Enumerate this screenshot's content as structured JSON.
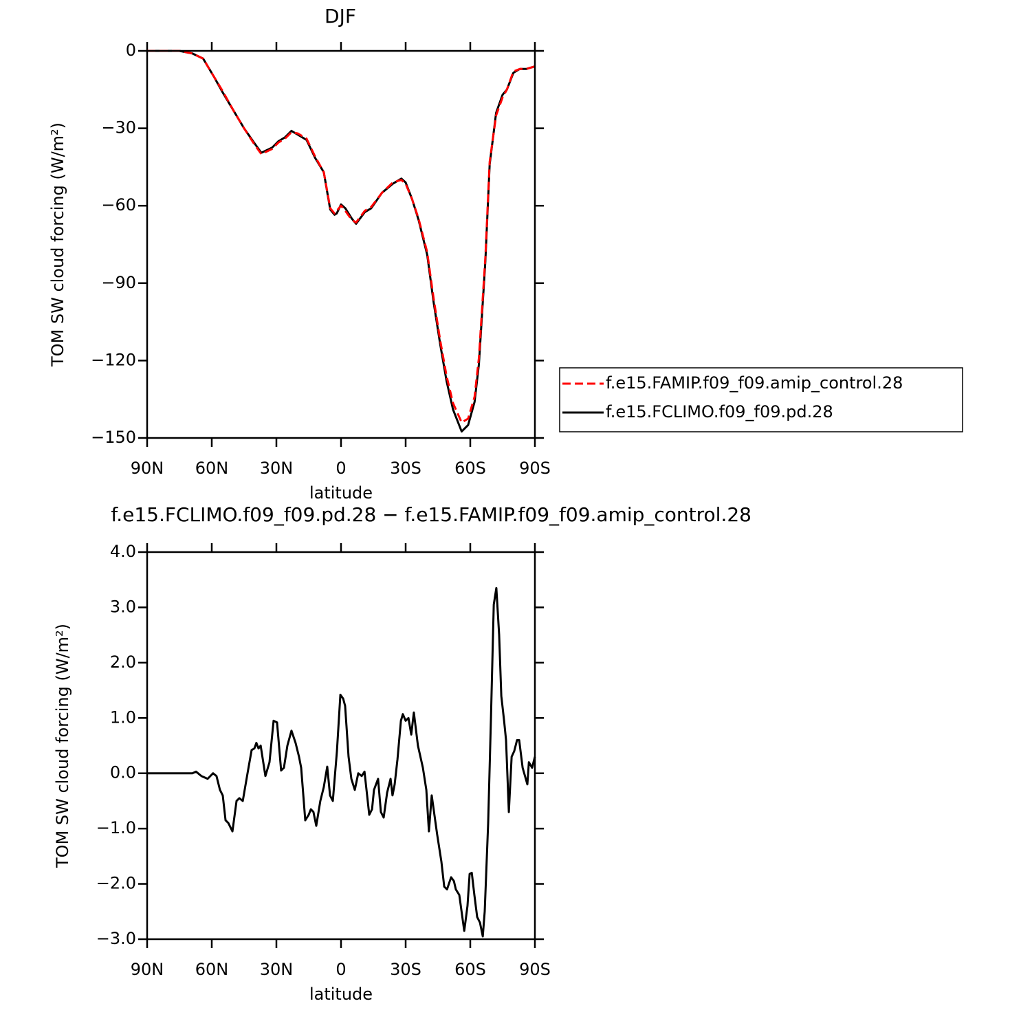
{
  "chart_data": [
    {
      "type": "line",
      "title": "DJF",
      "xlabel": "latitude",
      "ylabel": "TOM SW cloud forcing (W/m²)",
      "x": [
        90,
        80,
        75,
        69,
        64,
        59,
        55,
        50,
        45,
        40,
        37,
        32,
        29,
        26,
        23,
        20,
        16,
        12,
        8,
        5,
        3,
        2,
        0,
        -2,
        -5,
        -7,
        -11,
        -14,
        -19,
        -24,
        -28,
        -30,
        -33,
        -36,
        -40,
        -43,
        -46,
        -49,
        -52,
        -56,
        -59,
        -62,
        -64,
        -67,
        -69,
        -72,
        -75,
        -77,
        -80,
        -83,
        -86,
        -90
      ],
      "series": [
        {
          "name": "f.e15.FAMIP.f09_f09.amip_control.28",
          "color": "#ff0000",
          "line_style": "dashed",
          "values": [
            0,
            0,
            0,
            -1,
            -3,
            -10,
            -15.5,
            -23,
            -30,
            -36.5,
            -40,
            -38,
            -35.5,
            -34,
            -31.5,
            -32,
            -34,
            -41,
            -47,
            -61,
            -63,
            -62,
            -60,
            -62,
            -65.5,
            -66.5,
            -62,
            -60.5,
            -55,
            -51,
            -50,
            -51.5,
            -57.5,
            -65,
            -78,
            -96,
            -112,
            -126,
            -136.5,
            -144,
            -142.5,
            -134,
            -119,
            -80,
            -43,
            -25,
            -18,
            -15,
            -8,
            -7,
            -7,
            -6
          ]
        },
        {
          "name": "f.e15.FCLIMO.f09_f09.pd.28",
          "color": "#000000",
          "line_style": "solid",
          "values": [
            0,
            0,
            0,
            -1,
            -3,
            -10,
            -16,
            -23,
            -30,
            -36,
            -39.5,
            -37.5,
            -35,
            -33.5,
            -31,
            -32.5,
            -34.5,
            -41.5,
            -47,
            -61.5,
            -63.5,
            -63,
            -59.5,
            -61,
            -65,
            -67,
            -62.5,
            -61,
            -55,
            -51.5,
            -49.5,
            -51,
            -57.5,
            -65.5,
            -79,
            -97.5,
            -113.5,
            -128,
            -139,
            -147.5,
            -145,
            -136,
            -121.5,
            -81.5,
            -44,
            -24,
            -17,
            -15,
            -8.5,
            -7,
            -7,
            -6
          ]
        }
      ],
      "xlim": [
        90,
        -90
      ],
      "xticks": [
        {
          "value": 90,
          "label": "90N"
        },
        {
          "value": 60,
          "label": "60N"
        },
        {
          "value": 30,
          "label": "30N"
        },
        0,
        {
          "value": -30,
          "label": "30S"
        },
        {
          "value": -60,
          "label": "60S"
        },
        {
          "value": -90,
          "label": "90S"
        }
      ],
      "ylim": [
        -150,
        0
      ],
      "yticks": [
        0,
        {
          "value": -30,
          "label": "−30"
        },
        {
          "value": -60,
          "label": "−60"
        },
        {
          "value": -90,
          "label": "−90"
        },
        {
          "value": -120,
          "label": "−120"
        },
        {
          "value": -150,
          "label": "−150"
        }
      ],
      "legend": "right"
    },
    {
      "type": "line",
      "title": "f.e15.FCLIMO.f09_f09.pd.28 − f.e15.FAMIP.f09_f09.amip_control.28",
      "xlabel": "latitude",
      "ylabel": "TOM SW cloud forcing (W/m²)",
      "x": [
        90,
        69,
        67.3,
        64.8,
        61.9,
        59.4,
        57.8,
        56.2,
        54.9,
        53.6,
        52.3,
        50.4,
        48.5,
        47.2,
        45.6,
        43.4,
        41.5,
        40.2,
        39.3,
        38.3,
        37.3,
        35.1,
        33.2,
        31.3,
        29.7,
        27.8,
        26.5,
        24.9,
        23,
        21.1,
        19.5,
        18.5,
        16.6,
        15,
        14,
        12.8,
        11.5,
        9.6,
        8,
        6.4,
        5.1,
        3.8,
        1.9,
        0.3,
        -1,
        -1.9,
        -3.5,
        -4.8,
        -6.4,
        -8,
        -9.6,
        -10.9,
        -13.1,
        -14.4,
        -15.3,
        -17.2,
        -18.5,
        -19.8,
        -21.4,
        -23,
        -23.9,
        -24.9,
        -26.2,
        -27.8,
        -28.7,
        -30,
        -31.3,
        -32.6,
        -33.8,
        -35.7,
        -38,
        -39.6,
        -40.8,
        -42.1,
        -44.6,
        -46.6,
        -47.9,
        -49.2,
        -51.1,
        -52.4,
        -53.3,
        -54.9,
        -57.2,
        -58.7,
        -59.7,
        -60.7,
        -61.9,
        -63.2,
        -64.5,
        -65.8,
        -66.7,
        -68.3,
        -69.6,
        -70.9,
        -72.1,
        -73.4,
        -74.4,
        -75.7,
        -76.6,
        -77.9,
        -79.2,
        -80.4,
        -81.7,
        -82.7,
        -84.3,
        -86.5,
        -87.2,
        -88.7,
        -90
      ],
      "values": [
        0,
        0,
        0.03,
        -0.05,
        -0.1,
        0,
        -0.05,
        -0.3,
        -0.4,
        -0.85,
        -0.9,
        -1.05,
        -0.5,
        -0.45,
        -0.5,
        0,
        0.42,
        0.45,
        0.55,
        0.45,
        0.5,
        -0.05,
        0.2,
        0.95,
        0.92,
        0.05,
        0.1,
        0.5,
        0.77,
        0.55,
        0.3,
        0.1,
        -0.85,
        -0.75,
        -0.65,
        -0.7,
        -0.95,
        -0.5,
        -0.25,
        0.12,
        -0.4,
        -0.5,
        0.4,
        1.42,
        1.35,
        1.22,
        0.3,
        -0.1,
        -0.3,
        0,
        -0.05,
        0.03,
        -0.75,
        -0.65,
        -0.3,
        -0.1,
        -0.7,
        -0.8,
        -0.35,
        -0.1,
        -0.4,
        -0.2,
        0.25,
        0.95,
        1.07,
        0.95,
        1,
        0.7,
        1.1,
        0.5,
        0.1,
        -0.3,
        -1.05,
        -0.4,
        -1.1,
        -1.6,
        -2.05,
        -2.1,
        -1.88,
        -1.95,
        -2.1,
        -2.2,
        -2.85,
        -2.4,
        -1.82,
        -1.8,
        -2.2,
        -2.6,
        -2.7,
        -2.95,
        -2.5,
        -0.9,
        1,
        3.05,
        3.35,
        2.5,
        1.4,
        0.95,
        0.6,
        -0.7,
        0.3,
        0.4,
        0.6,
        0.6,
        0.1,
        -0.2,
        0.2,
        0.1,
        0.3
      ],
      "color": "#000000",
      "xlim": [
        90,
        -90
      ],
      "xticks": [
        {
          "value": 90,
          "label": "90N"
        },
        {
          "value": 60,
          "label": "60N"
        },
        {
          "value": 30,
          "label": "30N"
        },
        0,
        {
          "value": -30,
          "label": "30S"
        },
        {
          "value": -60,
          "label": "60S"
        },
        {
          "value": -90,
          "label": "90S"
        }
      ],
      "ylim": [
        -3,
        4
      ],
      "yticks": [
        {
          "value": 4,
          "label": "4.0"
        },
        {
          "value": 3,
          "label": "3.0"
        },
        {
          "value": 2,
          "label": "2.0"
        },
        {
          "value": 1,
          "label": "1.0"
        },
        {
          "value": 0,
          "label": "0.0"
        },
        {
          "value": -1,
          "label": "−1.0"
        },
        {
          "value": -2,
          "label": "−2.0"
        },
        {
          "value": -3,
          "label": "−3.0"
        }
      ]
    }
  ]
}
